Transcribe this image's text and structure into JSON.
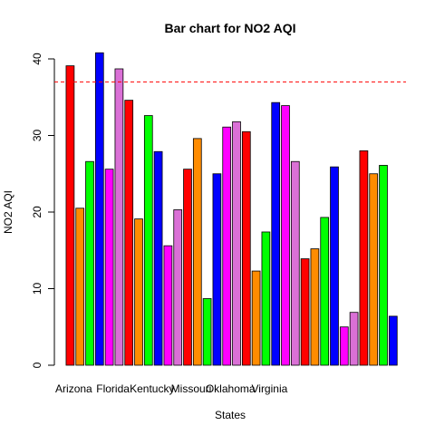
{
  "chart_data": {
    "type": "bar",
    "title": "Bar chart for NO2 AQI",
    "xlabel": "States",
    "ylabel": "NO2 AQI",
    "ylim": [
      0,
      40
    ],
    "yticks": [
      0,
      10,
      20,
      30,
      40
    ],
    "x_tick_labels": [
      "Arizona",
      "Florida",
      "Kentucky",
      "Missouri",
      "Oklahoma",
      "Virginia"
    ],
    "x_tick_positions": [
      0,
      4,
      8,
      12,
      16,
      20
    ],
    "reference_line": {
      "value": 37,
      "color": "#ff0000",
      "style": "dashed"
    },
    "grid": false,
    "bars": [
      {
        "value": 39.1,
        "color": "#ff0000"
      },
      {
        "value": 20.5,
        "color": "#ff8c00"
      },
      {
        "value": 26.6,
        "color": "#00ff00"
      },
      {
        "value": 40.8,
        "color": "#0000ff"
      },
      {
        "value": 25.6,
        "color": "#ff00ff"
      },
      {
        "value": 38.7,
        "color": "#da70d6"
      },
      {
        "value": 34.6,
        "color": "#ff0000"
      },
      {
        "value": 19.1,
        "color": "#ff8c00"
      },
      {
        "value": 32.6,
        "color": "#00ff00"
      },
      {
        "value": 27.9,
        "color": "#0000ff"
      },
      {
        "value": 15.6,
        "color": "#ff00ff"
      },
      {
        "value": 20.3,
        "color": "#da70d6"
      },
      {
        "value": 25.6,
        "color": "#ff0000"
      },
      {
        "value": 29.6,
        "color": "#ff8c00"
      },
      {
        "value": 8.7,
        "color": "#00ff00"
      },
      {
        "value": 25.0,
        "color": "#0000ff"
      },
      {
        "value": 31.1,
        "color": "#ff00ff"
      },
      {
        "value": 31.8,
        "color": "#da70d6"
      },
      {
        "value": 30.5,
        "color": "#ff0000"
      },
      {
        "value": 12.3,
        "color": "#ff8c00"
      },
      {
        "value": 17.4,
        "color": "#00ff00"
      },
      {
        "value": 34.3,
        "color": "#0000ff"
      },
      {
        "value": 33.9,
        "color": "#ff00ff"
      },
      {
        "value": 26.6,
        "color": "#da70d6"
      },
      {
        "value": 13.9,
        "color": "#ff0000"
      },
      {
        "value": 15.2,
        "color": "#ff8c00"
      },
      {
        "value": 19.3,
        "color": "#00ff00"
      },
      {
        "value": 25.9,
        "color": "#0000ff"
      },
      {
        "value": 5.0,
        "color": "#ff00ff"
      },
      {
        "value": 6.9,
        "color": "#da70d6"
      },
      {
        "value": 28.0,
        "color": "#ff0000"
      },
      {
        "value": 25.0,
        "color": "#ff8c00"
      },
      {
        "value": 26.1,
        "color": "#00ff00"
      },
      {
        "value": 6.4,
        "color": "#0000ff"
      }
    ]
  }
}
